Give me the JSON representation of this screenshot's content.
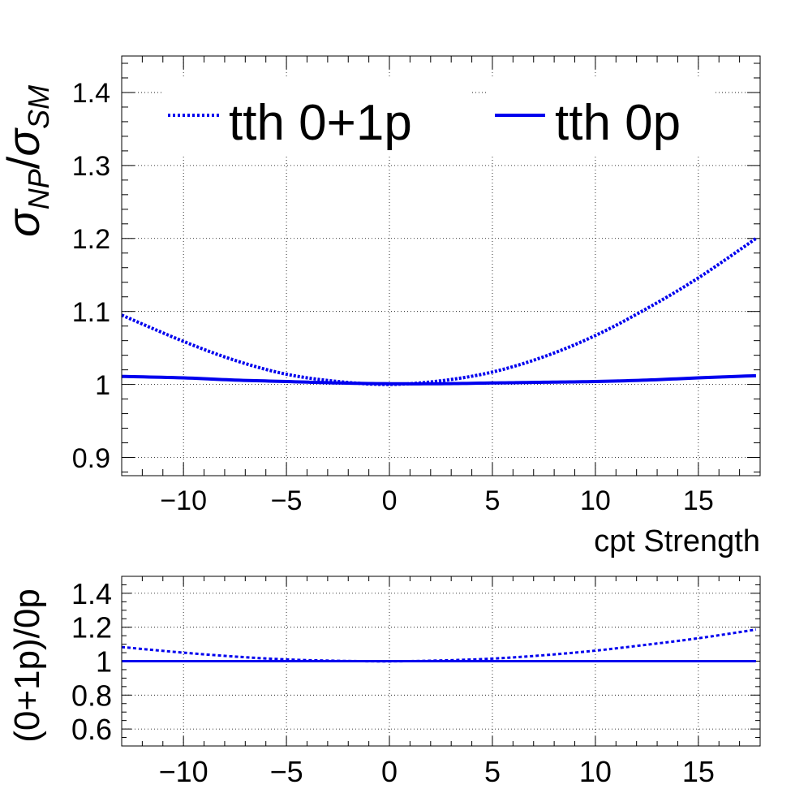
{
  "chart_data": [
    {
      "type": "line",
      "xlabel": "cpt Strength",
      "ylabel_main": "σ",
      "ylabel_sub1": "NP",
      "ylabel_slash": "/",
      "ylabel_sub2": "SM",
      "xlim": [
        -13,
        18
      ],
      "ylim": [
        0.875,
        1.45
      ],
      "x_ticks": [
        -10,
        -5,
        0,
        5,
        10,
        15
      ],
      "x_tick_labels": [
        "−10",
        "−5",
        "0",
        "5",
        "10",
        "15"
      ],
      "y_ticks": [
        0.9,
        1.0,
        1.1,
        1.2,
        1.3,
        1.4
      ],
      "y_tick_labels": [
        "0.9",
        "1",
        "1.1",
        "1.2",
        "1.3",
        "1.4"
      ],
      "grid": true,
      "legend_position": "top",
      "series": [
        {
          "name": "tth 0+1p",
          "style": "dotted",
          "color": "#0000ee",
          "x": [
            -13,
            -10,
            -7.5,
            -5,
            -2.5,
            0,
            2.5,
            5,
            7.5,
            10,
            12.5,
            15,
            17.8
          ],
          "y": [
            1.095,
            1.059,
            1.033,
            1.014,
            1.004,
            1.0,
            1.005,
            1.017,
            1.038,
            1.067,
            1.104,
            1.146,
            1.2
          ]
        },
        {
          "name": "tth 0p",
          "style": "solid",
          "color": "#0000ee",
          "x": [
            -13,
            -10,
            -7.5,
            -5,
            -2.5,
            0,
            2.5,
            5,
            7.5,
            10,
            12.5,
            15,
            17.8
          ],
          "y": [
            1.011,
            1.009,
            1.006,
            1.004,
            1.002,
            1.001,
            1.001,
            1.002,
            1.003,
            1.004,
            1.006,
            1.009,
            1.012
          ]
        }
      ]
    },
    {
      "type": "line",
      "ylabel": "(0+1p)/0p",
      "xlim": [
        -13,
        18
      ],
      "ylim": [
        0.5,
        1.5
      ],
      "x_ticks": [
        -10,
        -5,
        0,
        5,
        10,
        15
      ],
      "x_tick_labels": [
        "−10",
        "−5",
        "0",
        "5",
        "10",
        "15"
      ],
      "y_ticks": [
        0.6,
        0.8,
        1.0,
        1.2,
        1.4
      ],
      "y_tick_labels": [
        "0.6",
        "0.8",
        "1",
        "1.2",
        "1.4"
      ],
      "grid": true,
      "series": [
        {
          "style": "dotted",
          "color": "#0000ee",
          "x": [
            -13,
            -10,
            -7.5,
            -5,
            -2.5,
            0,
            2.5,
            5,
            7.5,
            10,
            12.5,
            15,
            17.8
          ],
          "y": [
            1.083,
            1.05,
            1.027,
            1.01,
            1.002,
            0.999,
            1.004,
            1.015,
            1.035,
            1.062,
            1.097,
            1.135,
            1.186
          ]
        },
        {
          "style": "solid",
          "color": "#0000ee",
          "x": [
            -13,
            17.8
          ],
          "y": [
            1.0,
            1.0
          ]
        }
      ]
    }
  ]
}
